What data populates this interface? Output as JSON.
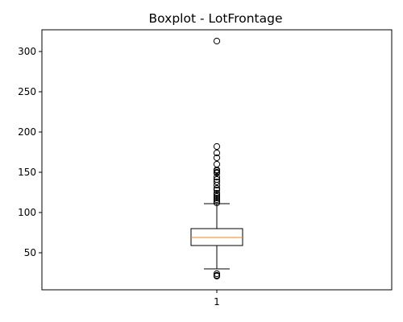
{
  "chart_data": {
    "type": "boxplot",
    "title": "Boxplot - LotFrontage",
    "xlabel": "",
    "ylabel": "",
    "categories": [
      "1"
    ],
    "ylim": [
      4,
      327
    ],
    "yticks": [
      50,
      100,
      150,
      200,
      250,
      300
    ],
    "grid": false,
    "series": [
      {
        "name": "LotFrontage",
        "whisker_low": 30,
        "q1": 59,
        "median": 69,
        "q3": 80,
        "whisker_high": 111,
        "fliers": [
          21,
          22,
          24,
          112,
          114,
          116,
          118,
          120,
          122,
          124,
          128,
          130,
          134,
          138,
          141,
          144,
          149,
          150,
          152,
          153,
          160,
          168,
          174,
          182,
          313
        ]
      }
    ],
    "colors": {
      "box": "#000000",
      "median": "#ff7f0e",
      "flier_edge": "#000000",
      "background": "#ffffff"
    }
  }
}
